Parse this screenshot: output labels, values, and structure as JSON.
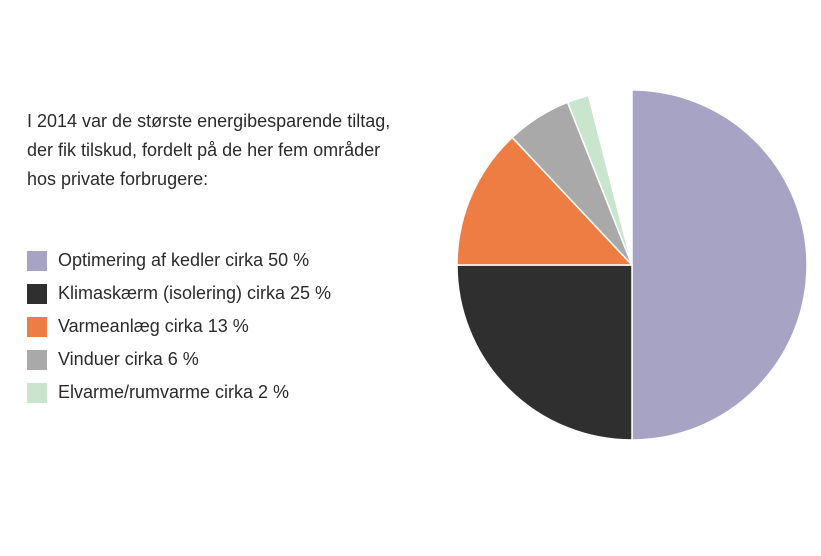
{
  "intro": {
    "lines": [
      "I 2014 var de største energibesparende tiltag,",
      "der fik tilskud, fordelt på de her fem områder",
      "hos private forbrugere:"
    ]
  },
  "chart_data": {
    "type": "pie",
    "unit": "%",
    "start": "12 o'clock",
    "direction": "clockwise",
    "slices": [
      {
        "label": "Optimering af kedler cirka 50 %",
        "value": 50,
        "color": "#a7a3c5"
      },
      {
        "label": "Klimaskærm (isolering) cirka 25 %",
        "value": 25,
        "color": "#2f2f2f"
      },
      {
        "label": "Varmeanlæg cirka 13 %",
        "value": 13,
        "color": "#ee7d44"
      },
      {
        "label": "Vinduer cirka 6 %",
        "value": 6,
        "color": "#a9a9a9"
      },
      {
        "label": "Elvarme/rumvarme cirka 2 %",
        "value": 2,
        "color": "#c9e5cd"
      }
    ],
    "total": 100,
    "remainder_color": "#ffffff"
  }
}
